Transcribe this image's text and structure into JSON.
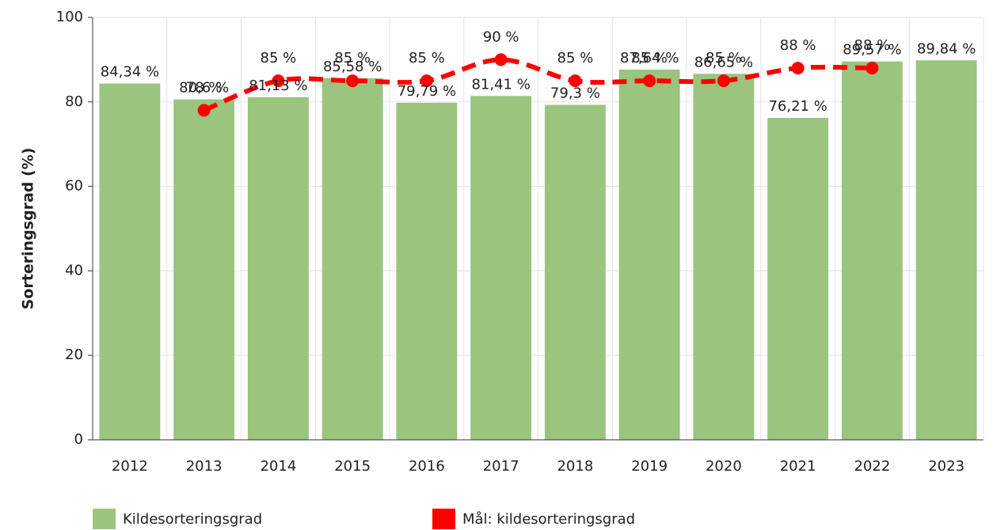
{
  "chart_data": {
    "type": "bar",
    "y_label": "Sorteringsgrad (%)",
    "categories": [
      "2012",
      "2013",
      "2014",
      "2015",
      "2016",
      "2017",
      "2018",
      "2019",
      "2020",
      "2021",
      "2022",
      "2023"
    ],
    "series": [
      {
        "name": "Kildesorteringsgrad",
        "type": "bar",
        "color": "#9bc47f",
        "values": [
          84.34,
          80.6,
          81.13,
          85.58,
          79.79,
          81.41,
          79.3,
          87.64,
          86.65,
          76.21,
          89.57,
          89.84
        ],
        "value_labels": [
          "84,34 %",
          "80,6 %",
          "81,13 %",
          "85,58 %",
          "79,79 %",
          "81,41 %",
          "79,3 %",
          "87,64 %",
          "86,65 %",
          "76,21 %",
          "89,57 %",
          "89,84 %"
        ]
      },
      {
        "name": "Mål: kildesorteringsgrad",
        "type": "line",
        "color": "#ff0000",
        "values": [
          null,
          78,
          85,
          85,
          85,
          90,
          85,
          85,
          85,
          88,
          88,
          null
        ],
        "value_labels": [
          null,
          "78 %",
          "85 %",
          "85 %",
          "85 %",
          "90 %",
          "85 %",
          "85 %",
          "85 %",
          "88 %",
          "88 %",
          null
        ]
      }
    ],
    "ylim": [
      0,
      100
    ],
    "yticks": [
      0,
      20,
      40,
      60,
      80,
      100
    ],
    "grid": true
  }
}
